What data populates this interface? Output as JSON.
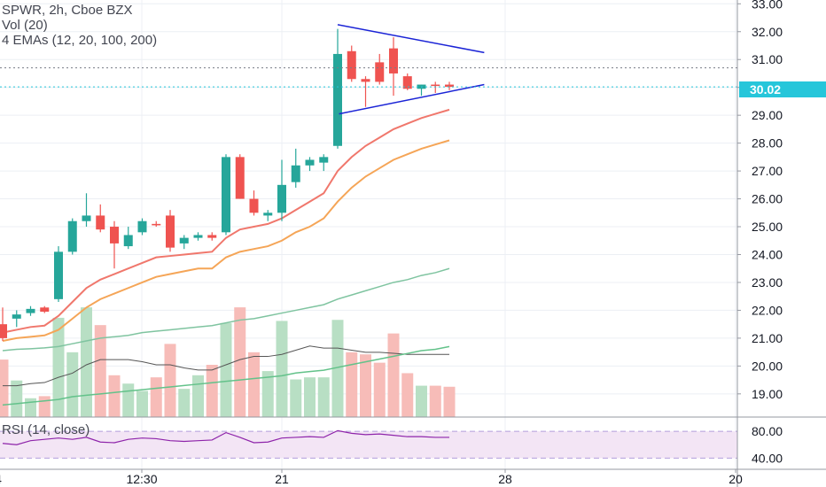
{
  "header": {
    "symbol_line": "SPWR, 2h, Cboe BZX",
    "volume_line": "Vol (20)",
    "ema_line": "4 EMAs (12, 20, 100, 200)",
    "rsi_line": "RSI (14, close)"
  },
  "last_price": "30.02",
  "colors": {
    "up": "#26a69a",
    "down": "#ef5350",
    "volume_up": "#b8dfc4",
    "volume_down": "#f7bcb8",
    "ema12": "#f0776c",
    "ema20": "#f5a557",
    "ema100": "#7fc4a0",
    "ema200": "#63c28a",
    "volume_ma": "#555555",
    "rsi": "#8e24aa",
    "rsi_band": "#f3e5f5",
    "triangle": "#1a23d6",
    "price_line": "#26c6da"
  },
  "chart_data": [
    {
      "type": "candlestick",
      "title": "SPWR, 2h, Cboe BZX",
      "ylim": [
        18.2,
        33.2
      ],
      "price_ticks": [
        "33.00",
        "32.00",
        "31.00",
        "30.00",
        "29.00",
        "28.00",
        "27.00",
        "26.00",
        "25.00",
        "24.00",
        "23.00",
        "22.00",
        "21.00",
        "20.00",
        "19.00"
      ],
      "x_ticks": [
        "4",
        "12:30",
        "21",
        "28",
        "20"
      ],
      "last_price": 30.02,
      "candles": [
        {
          "o": 21.5,
          "h": 22.1,
          "l": 20.9,
          "c": 21.0
        },
        {
          "o": 21.7,
          "h": 22.0,
          "l": 21.4,
          "c": 21.85
        },
        {
          "o": 21.9,
          "h": 22.15,
          "l": 21.8,
          "c": 22.05
        },
        {
          "o": 22.1,
          "h": 22.15,
          "l": 21.9,
          "c": 21.95
        },
        {
          "o": 22.4,
          "h": 24.3,
          "l": 22.3,
          "c": 24.1
        },
        {
          "o": 24.1,
          "h": 25.3,
          "l": 24.0,
          "c": 25.2
        },
        {
          "o": 25.2,
          "h": 26.2,
          "l": 25.0,
          "c": 25.4
        },
        {
          "o": 25.4,
          "h": 25.8,
          "l": 24.8,
          "c": 24.9
        },
        {
          "o": 25.0,
          "h": 25.2,
          "l": 23.5,
          "c": 24.4
        },
        {
          "o": 24.3,
          "h": 25.0,
          "l": 24.2,
          "c": 24.7
        },
        {
          "o": 24.8,
          "h": 25.3,
          "l": 24.7,
          "c": 25.2
        },
        {
          "o": 25.1,
          "h": 25.2,
          "l": 25.0,
          "c": 25.05
        },
        {
          "o": 25.4,
          "h": 25.6,
          "l": 24.1,
          "c": 24.25
        },
        {
          "o": 24.4,
          "h": 24.7,
          "l": 24.2,
          "c": 24.6
        },
        {
          "o": 24.6,
          "h": 24.8,
          "l": 24.5,
          "c": 24.7
        },
        {
          "o": 24.7,
          "h": 24.8,
          "l": 24.5,
          "c": 24.6
        },
        {
          "o": 24.8,
          "h": 27.6,
          "l": 24.7,
          "c": 27.5
        },
        {
          "o": 27.5,
          "h": 27.6,
          "l": 26.0,
          "c": 26.0
        },
        {
          "o": 26.0,
          "h": 26.3,
          "l": 25.4,
          "c": 25.5
        },
        {
          "o": 25.4,
          "h": 25.6,
          "l": 25.2,
          "c": 25.5
        },
        {
          "o": 25.5,
          "h": 27.4,
          "l": 25.2,
          "c": 26.5
        },
        {
          "o": 26.6,
          "h": 27.8,
          "l": 26.4,
          "c": 27.2
        },
        {
          "o": 27.2,
          "h": 27.5,
          "l": 27.0,
          "c": 27.4
        },
        {
          "o": 27.3,
          "h": 27.6,
          "l": 27.0,
          "c": 27.5
        },
        {
          "o": 27.9,
          "h": 32.1,
          "l": 27.8,
          "c": 31.2
        },
        {
          "o": 31.3,
          "h": 31.5,
          "l": 30.2,
          "c": 30.3
        },
        {
          "o": 30.3,
          "h": 30.4,
          "l": 29.3,
          "c": 30.2
        },
        {
          "o": 30.9,
          "h": 31.2,
          "l": 30.1,
          "c": 30.2
        },
        {
          "o": 31.4,
          "h": 31.8,
          "l": 29.7,
          "c": 30.5
        },
        {
          "o": 30.4,
          "h": 30.5,
          "l": 29.9,
          "c": 29.95
        },
        {
          "o": 29.95,
          "h": 30.1,
          "l": 29.7,
          "c": 30.1
        },
        {
          "o": 30.1,
          "h": 30.2,
          "l": 29.8,
          "c": 30.05
        },
        {
          "o": 30.1,
          "h": 30.2,
          "l": 29.9,
          "c": 30.02
        }
      ],
      "ema12": [
        21.2,
        21.3,
        21.4,
        21.45,
        21.8,
        22.3,
        22.8,
        23.1,
        23.3,
        23.5,
        23.7,
        23.9,
        23.95,
        24.0,
        24.05,
        24.1,
        24.6,
        24.9,
        25.0,
        25.1,
        25.3,
        25.6,
        25.9,
        26.2,
        27.0,
        27.5,
        27.9,
        28.2,
        28.5,
        28.7,
        28.9,
        29.05,
        29.2
      ],
      "ema20": [
        20.9,
        21.0,
        21.05,
        21.1,
        21.3,
        21.7,
        22.1,
        22.4,
        22.6,
        22.8,
        23.0,
        23.2,
        23.3,
        23.4,
        23.5,
        23.5,
        23.9,
        24.1,
        24.2,
        24.3,
        24.5,
        24.8,
        25.0,
        25.3,
        25.9,
        26.4,
        26.8,
        27.1,
        27.4,
        27.6,
        27.8,
        27.95,
        28.1
      ],
      "ema100": [
        20.55,
        20.6,
        20.62,
        20.65,
        20.7,
        20.8,
        20.9,
        21.0,
        21.05,
        21.1,
        21.2,
        21.25,
        21.3,
        21.35,
        21.4,
        21.45,
        21.55,
        21.65,
        21.7,
        21.8,
        21.9,
        22.0,
        22.1,
        22.2,
        22.4,
        22.55,
        22.7,
        22.85,
        23.0,
        23.1,
        23.25,
        23.35,
        23.5
      ],
      "ema200": [
        18.6,
        18.65,
        18.7,
        18.75,
        18.8,
        18.9,
        18.95,
        19.0,
        19.05,
        19.1,
        19.15,
        19.2,
        19.25,
        19.3,
        19.35,
        19.4,
        19.45,
        19.5,
        19.55,
        19.6,
        19.65,
        19.75,
        19.8,
        19.85,
        19.95,
        20.05,
        20.15,
        20.25,
        20.35,
        20.45,
        20.55,
        20.6,
        20.7
      ],
      "triangle": {
        "upper": [
          [
            24.0,
            32.25
          ],
          [
            34.5,
            31.25
          ]
        ],
        "lower": [
          [
            24.1,
            29.05
          ],
          [
            34.5,
            30.1
          ]
        ]
      }
    },
    {
      "type": "bar",
      "title": "Vol (20)",
      "series": [
        {
          "values": [
            0.55,
            0.35,
            0.18,
            0.2,
            0.95,
            0.62,
            1.05,
            0.88,
            0.4,
            0.32,
            0.25,
            0.38,
            0.7,
            0.27,
            0.4,
            0.5,
            0.9,
            1.05,
            0.62,
            0.44,
            0.92,
            0.36,
            0.38,
            0.38,
            0.93,
            0.62,
            0.6,
            0.52,
            0.8,
            0.42,
            0.3,
            0.3,
            0.29
          ]
        }
      ],
      "up_down": [
        "d",
        "u",
        "u",
        "d",
        "u",
        "u",
        "u",
        "d",
        "d",
        "u",
        "u",
        "d",
        "d",
        "u",
        "u",
        "d",
        "u",
        "d",
        "d",
        "u",
        "u",
        "u",
        "u",
        "u",
        "u",
        "d",
        "d",
        "d",
        "d",
        "d",
        "u",
        "d",
        "d"
      ],
      "volume_ma": [
        0.3,
        0.3,
        0.32,
        0.33,
        0.38,
        0.42,
        0.5,
        0.55,
        0.55,
        0.55,
        0.53,
        0.5,
        0.5,
        0.47,
        0.45,
        0.45,
        0.5,
        0.55,
        0.58,
        0.58,
        0.6,
        0.64,
        0.68,
        0.66,
        0.66,
        0.64,
        0.62,
        0.62,
        0.61,
        0.6,
        0.6,
        0.6,
        0.6
      ]
    },
    {
      "type": "line",
      "title": "RSI (14, close)",
      "y_ticks": [
        "80.00",
        "40.00"
      ],
      "band": [
        40,
        80
      ],
      "ylim": [
        30,
        92
      ],
      "values": [
        62,
        60,
        66,
        68,
        70,
        68,
        71,
        64,
        63,
        68,
        70,
        69,
        66,
        65,
        66,
        67,
        78,
        71,
        63,
        64,
        70,
        71,
        72,
        71,
        81,
        77,
        75,
        76,
        74,
        72,
        72,
        71,
        71
      ]
    }
  ]
}
